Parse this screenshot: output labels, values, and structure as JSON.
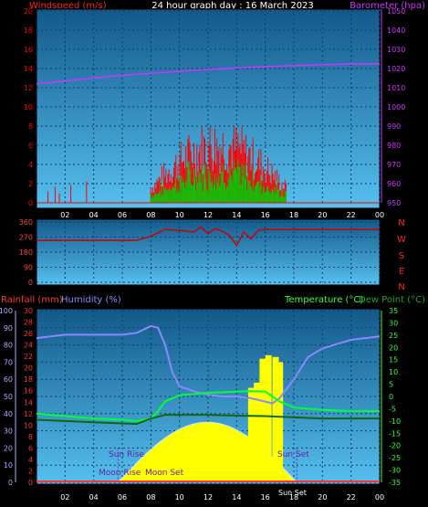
{
  "title": "24 hour graph day : 16 March 2023",
  "top_panel": {
    "left_label": "Windspeed (m/s)",
    "right_label": "Barometer (hpa)"
  },
  "middle_panel": {
    "compass_labels": [
      "N",
      "W",
      "S",
      "E",
      "N"
    ]
  },
  "bottom_panel": {
    "rain_label": "Rainfall (mm)",
    "humidity_label": "Humidity (%)",
    "temp_label": "Temperature (°C)",
    "dew_label": "Dew Point (°C)",
    "sun_rise": "Sun Rise",
    "sun_set": "Sun Set",
    "moon_rise": "Moon Rise",
    "moon_set": "Moon Set",
    "sun_bottom": "Sun Set"
  },
  "colors": {
    "wind": "#ff0000",
    "gust": "#00cc00",
    "barometer": "#cc33ff",
    "direction": "#cc0000",
    "humidity": "#8888ff",
    "temperature": "#00ff33",
    "dewpoint": "#116611",
    "sun": "#ffff00",
    "rain": "#ff3333",
    "panel_top": "#13598a",
    "panel_bottom": "#56c0ef",
    "axis_left_top": "#ff0000",
    "axis_right_top": "#cc33ff",
    "axis_temp": "#33ff33",
    "axis_humidity": "#aaaaff",
    "axis_rain": "#ff3333"
  },
  "chart_data": [
    {
      "type": "line",
      "name": "wind-barometer",
      "x_ticks": [
        "02",
        "04",
        "06",
        "08",
        "10",
        "12",
        "14",
        "16",
        "18",
        "20",
        "22",
        "00"
      ],
      "y_left_ticks": [
        0,
        2,
        4,
        6,
        8,
        10,
        12,
        14,
        16,
        18,
        20
      ],
      "y_left_range": [
        0,
        20
      ],
      "y_right_ticks": [
        950,
        960,
        970,
        980,
        990,
        1000,
        1010,
        1020,
        1030,
        1040,
        1050
      ],
      "y_right_range": [
        950,
        1050
      ],
      "x_range": [
        0,
        24
      ],
      "barometer": {
        "x": [
          0,
          2,
          4,
          6,
          8,
          10,
          12,
          14,
          16,
          18,
          20,
          22,
          24
        ],
        "y": [
          1012,
          1013.5,
          1015,
          1016.5,
          1017.5,
          1018.5,
          1019.5,
          1020.3,
          1021,
          1021.5,
          1022,
          1022.3,
          1022.5
        ]
      },
      "wind_peak_hours": [
        8,
        17.5
      ]
    },
    {
      "type": "line",
      "name": "wind-direction",
      "y_ticks": [
        0,
        90,
        180,
        270,
        360
      ],
      "y_range": [
        0,
        360
      ],
      "x_range": [
        0,
        24
      ],
      "direction": {
        "x": [
          0,
          7,
          8,
          9,
          10,
          11,
          11.5,
          12,
          12.5,
          13,
          13.5,
          14,
          14.5,
          15,
          15.5,
          16,
          17,
          20,
          24
        ],
        "y": [
          250,
          250,
          275,
          315,
          310,
          300,
          330,
          290,
          320,
          305,
          280,
          220,
          300,
          260,
          310,
          315,
          315,
          315,
          315
        ]
      }
    },
    {
      "type": "line",
      "name": "temp-humidity-rain",
      "y_humidity_ticks": [
        0,
        10,
        20,
        30,
        40,
        50,
        60,
        70,
        80,
        90,
        100
      ],
      "y_rain_ticks": [
        0,
        2,
        4,
        6,
        8,
        10,
        12,
        14,
        16,
        18,
        20,
        22,
        24,
        26,
        28,
        30
      ],
      "y_temp_ticks": [
        35,
        30,
        25,
        20,
        15,
        10,
        5,
        0,
        -5,
        -10,
        -15,
        -20,
        -25,
        -30,
        -35
      ],
      "y_temp_range": [
        -35,
        35
      ],
      "x_range": [
        0,
        24
      ],
      "humidity": {
        "x": [
          0,
          2,
          4,
          6,
          7,
          8,
          8.5,
          9,
          9.5,
          10,
          11,
          12,
          13,
          14,
          15,
          16,
          16.5,
          17,
          18,
          19,
          20,
          22,
          24
        ],
        "y": [
          84,
          86,
          86,
          86,
          87,
          91,
          90,
          80,
          64,
          56,
          53,
          51,
          50,
          50,
          49,
          47,
          46,
          49,
          60,
          73,
          78,
          83,
          85
        ]
      },
      "temperature": {
        "x": [
          0,
          2,
          4,
          6,
          7,
          8,
          8.5,
          9,
          10,
          11,
          12,
          14,
          15,
          16,
          16.5,
          17,
          18,
          20,
          22,
          24
        ],
        "y": [
          -7,
          -8,
          -9,
          -9.5,
          -10,
          -9,
          -6,
          -2,
          0.5,
          1,
          1.5,
          2,
          2.2,
          2,
          0,
          -2,
          -4.5,
          -5.5,
          -6,
          -6
        ]
      },
      "dewpoint": {
        "x": [
          0,
          2,
          4,
          6,
          7,
          8,
          9,
          10,
          12,
          14,
          16,
          18,
          20,
          22,
          24
        ],
        "y": [
          -9.5,
          -10,
          -10.5,
          -11,
          -11.2,
          -9,
          -7.5,
          -7.5,
          -7.5,
          -7.8,
          -8,
          -8.5,
          -9,
          -9,
          -9
        ]
      },
      "solar_peak_hour": 12.3,
      "sunrise_hour": 5.7,
      "sunset_hour": 18.2
    }
  ]
}
